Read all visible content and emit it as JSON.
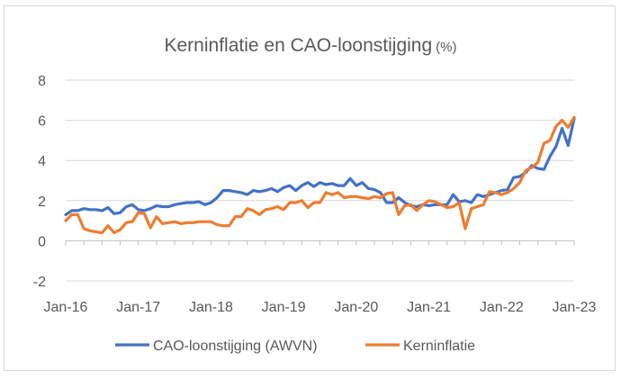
{
  "chart_data": {
    "type": "line",
    "title": "Kerninflatie en CAO-loonstijging",
    "title_unit": "(%)",
    "xlabel": "",
    "ylabel": "",
    "ylim": [
      -2,
      8
    ],
    "y_ticks": [
      "8",
      "6",
      "4",
      "2",
      "0",
      "-2"
    ],
    "x_ticks": [
      "Jan-16",
      "Jan-17",
      "Jan-18",
      "Jan-19",
      "Jan-20",
      "Jan-21",
      "Jan-22",
      "Jan-23"
    ],
    "x_start": "Jan-16",
    "grid": "horizontal",
    "legend_position": "bottom",
    "series": [
      {
        "name": "CAO-loonstijging (AWVN)",
        "color": "#4472c4",
        "values": [
          1.3,
          1.5,
          1.5,
          1.6,
          1.55,
          1.55,
          1.5,
          1.65,
          1.35,
          1.4,
          1.7,
          1.8,
          1.55,
          1.5,
          1.6,
          1.75,
          1.7,
          1.7,
          1.8,
          1.85,
          1.9,
          1.9,
          1.95,
          1.8,
          1.9,
          2.15,
          2.5,
          2.5,
          2.45,
          2.4,
          2.3,
          2.5,
          2.45,
          2.5,
          2.6,
          2.45,
          2.65,
          2.75,
          2.5,
          2.75,
          2.9,
          2.7,
          2.9,
          2.8,
          2.85,
          2.75,
          2.75,
          3.1,
          2.75,
          2.9,
          2.6,
          2.55,
          2.4,
          1.9,
          1.9,
          2.15,
          1.9,
          1.75,
          1.7,
          1.8,
          1.75,
          1.8,
          1.8,
          1.8,
          2.3,
          1.95,
          2.0,
          1.9,
          2.3,
          2.2,
          2.3,
          2.4,
          2.5,
          2.55,
          3.15,
          3.2,
          3.4,
          3.75,
          3.6,
          3.55,
          4.2,
          4.7,
          5.6,
          4.75,
          6.1
        ]
      },
      {
        "name": "Kerninflatie",
        "color": "#ed7d31",
        "values": [
          1.0,
          1.3,
          1.3,
          0.6,
          0.5,
          0.45,
          0.4,
          0.75,
          0.4,
          0.55,
          0.9,
          0.95,
          1.4,
          1.35,
          0.65,
          1.2,
          0.85,
          0.9,
          0.95,
          0.85,
          0.9,
          0.9,
          0.95,
          0.95,
          0.95,
          0.8,
          0.75,
          0.75,
          1.2,
          1.2,
          1.6,
          1.5,
          1.3,
          1.55,
          1.6,
          1.7,
          1.55,
          1.9,
          1.9,
          2.0,
          1.65,
          1.9,
          1.9,
          2.4,
          2.3,
          2.4,
          2.15,
          2.2,
          2.2,
          2.15,
          2.1,
          2.2,
          2.15,
          2.35,
          2.4,
          1.3,
          1.75,
          1.8,
          1.5,
          1.8,
          2.0,
          1.95,
          1.8,
          1.65,
          1.7,
          1.9,
          0.6,
          1.6,
          1.7,
          1.8,
          2.45,
          2.4,
          2.3,
          2.4,
          2.6,
          2.9,
          3.5,
          3.65,
          3.9,
          4.85,
          5.0,
          5.7,
          6.0,
          5.65,
          6.15
        ]
      }
    ]
  }
}
